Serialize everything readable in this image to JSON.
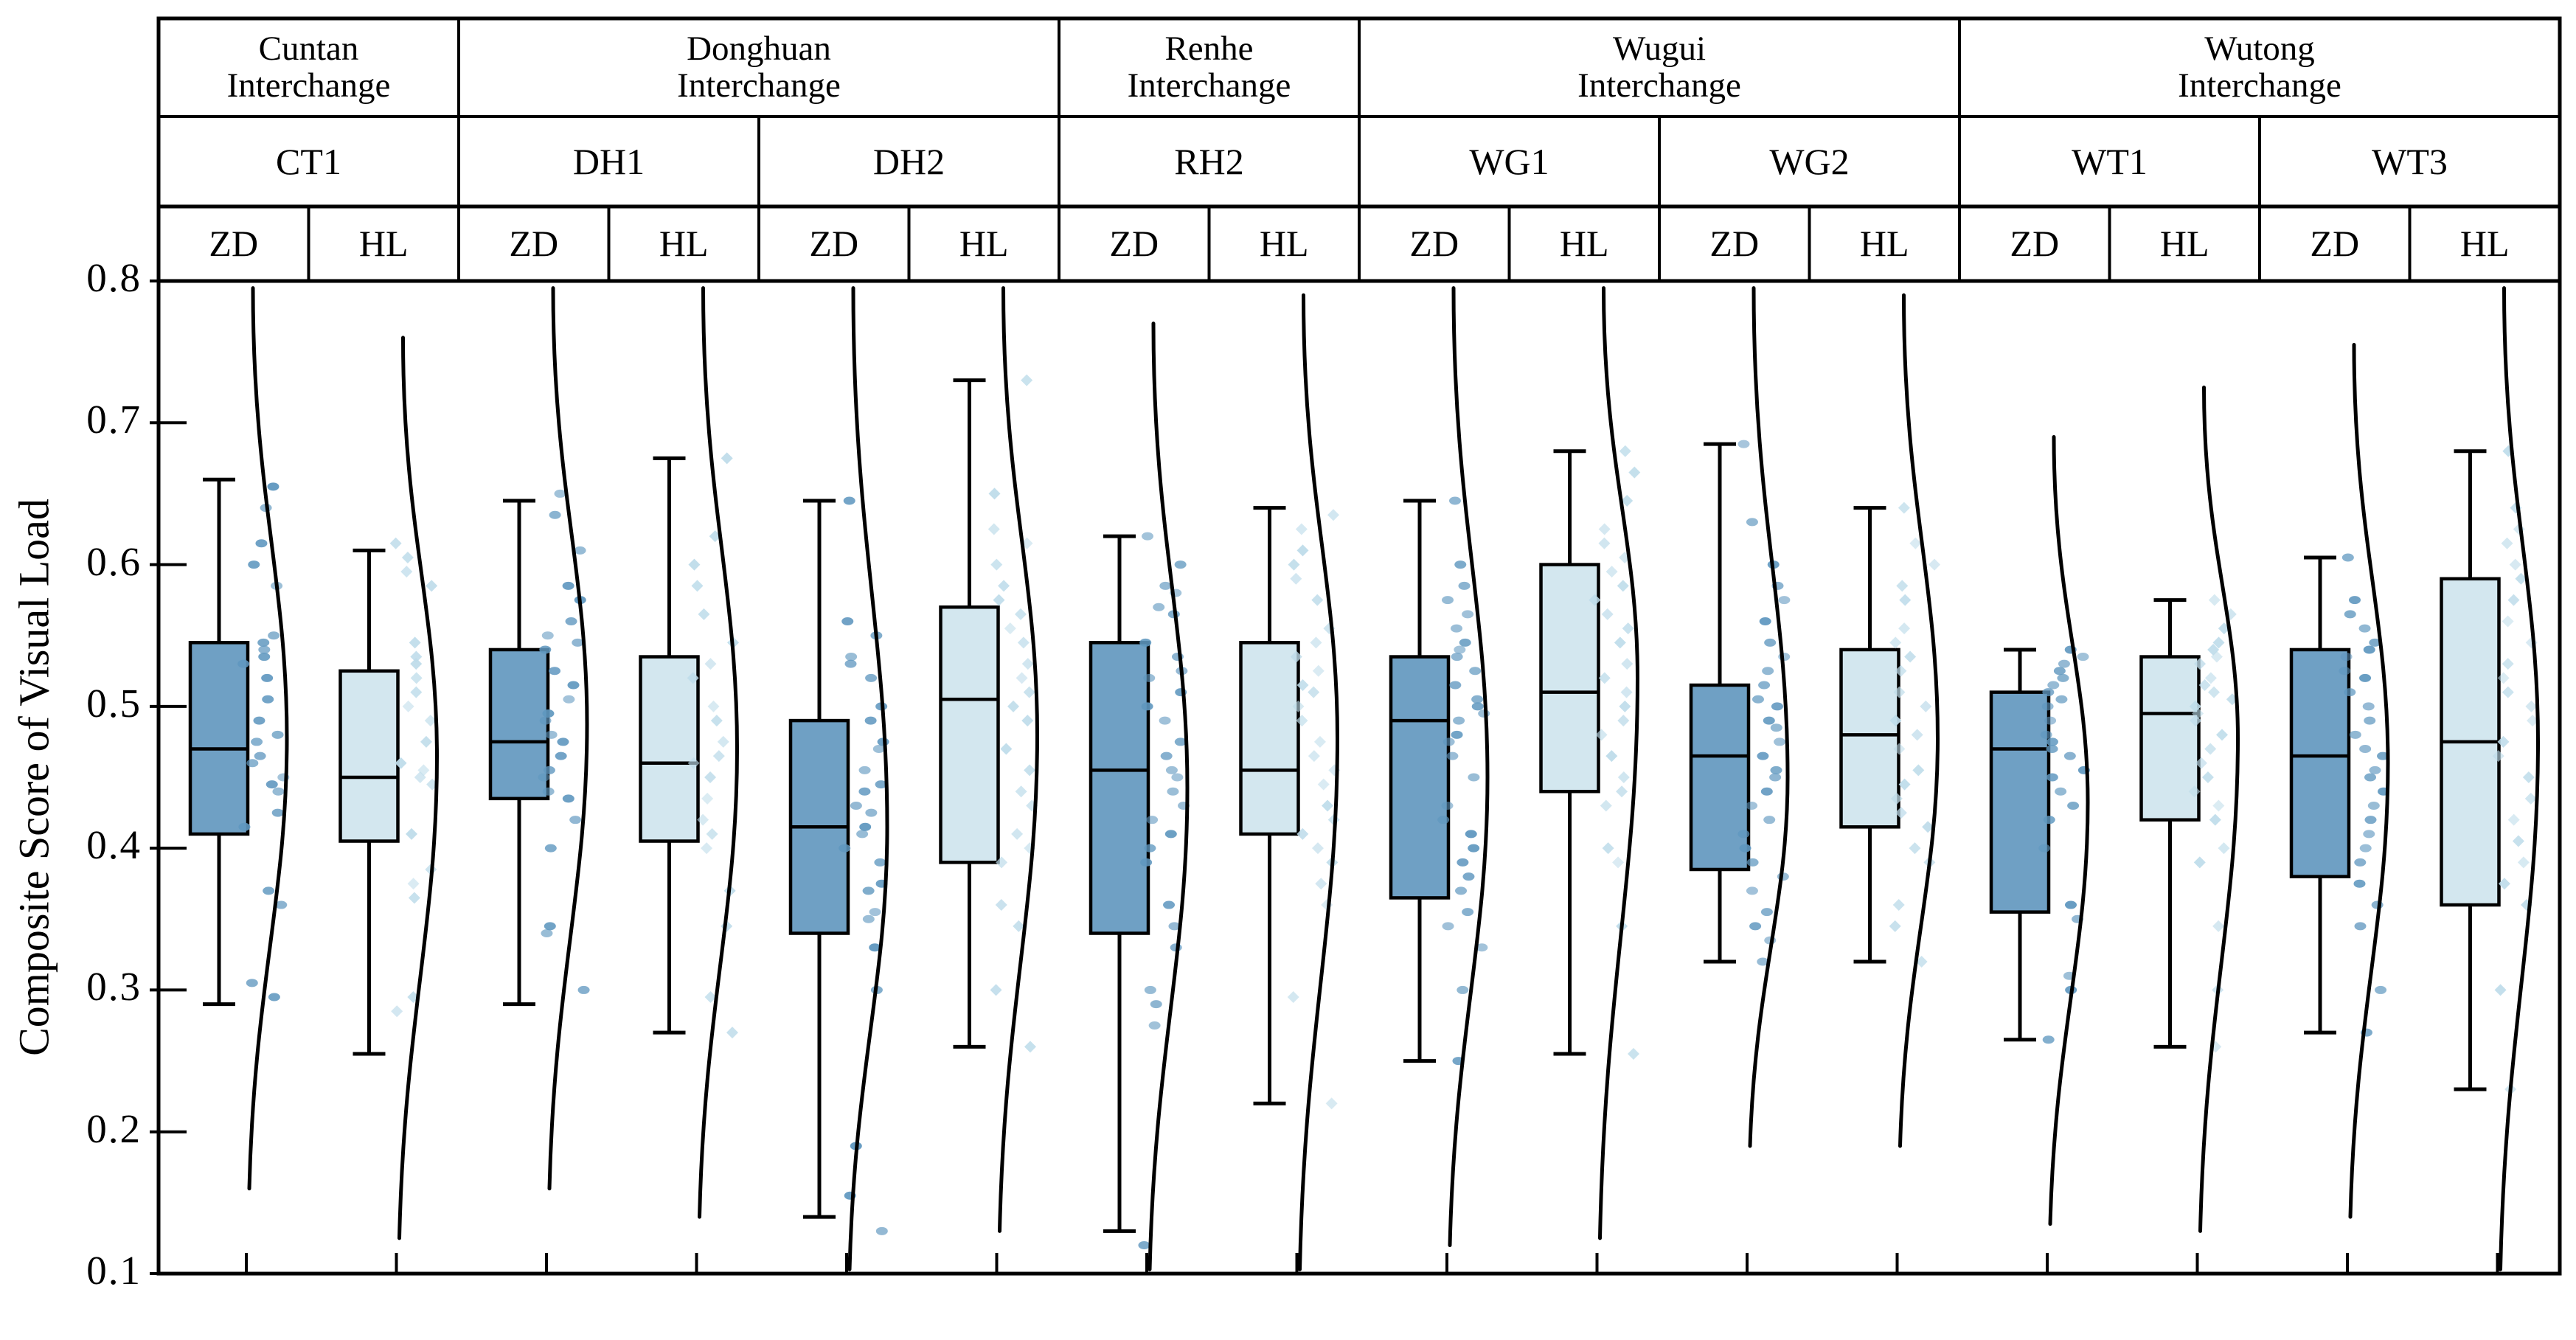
{
  "page": {
    "background": "#ffffff"
  },
  "y_axis": {
    "label": "Composite Score of Visual Load",
    "tick_labels": [
      "0.8",
      "0.7",
      "0.6",
      "0.5",
      "0.4",
      "0.3",
      "0.2",
      "0.1"
    ]
  },
  "header": {
    "interchange_row": [
      {
        "line1": "Cuntan",
        "line2": "Interchange",
        "span": 2
      },
      {
        "line1": "Donghuan",
        "line2": "Interchange",
        "span": 4
      },
      {
        "line1": "Renhe",
        "line2": "Interchange",
        "span": 2
      },
      {
        "line1": "Wugui",
        "line2": "Interchange",
        "span": 4
      },
      {
        "line1": "Wutong",
        "line2": "Interchange",
        "span": 4
      }
    ],
    "site_row": [
      {
        "label": "CT1",
        "span": 2
      },
      {
        "label": "DH1",
        "span": 2
      },
      {
        "label": "DH2",
        "span": 2
      },
      {
        "label": "RH2",
        "span": 2
      },
      {
        "label": "WG1",
        "span": 2
      },
      {
        "label": "WG2",
        "span": 2
      },
      {
        "label": "WT1",
        "span": 2
      },
      {
        "label": "WT3",
        "span": 2
      }
    ],
    "condition_row": [
      "ZD",
      "HL",
      "ZD",
      "HL",
      "ZD",
      "HL",
      "ZD",
      "HL",
      "ZD",
      "HL",
      "ZD",
      "HL",
      "ZD",
      "HL",
      "ZD",
      "HL"
    ]
  },
  "colors": {
    "zd_box": "#6FA0C4",
    "hl_box": "#D3E7EF",
    "zd_point": "#5F97BF",
    "hl_point": "#BEDCEA",
    "line": "#000000",
    "background": "#ffffff"
  },
  "chart_data": {
    "type": "boxplot",
    "variant": "raincloud: box + jittered points + half-violin density outline per cell",
    "title": "",
    "xlabel": "",
    "ylabel": "Composite Score of Visual Load",
    "ylim": [
      0.1,
      0.8
    ],
    "y_ticks": [
      0.8,
      0.7,
      0.6,
      0.5,
      0.4,
      0.3,
      0.2,
      0.1
    ],
    "legend": "none",
    "grid": false,
    "groups": [
      {
        "interchange": "Cuntan Interchange",
        "site": "CT1",
        "condition": "ZD",
        "whisker_low": 0.29,
        "q1": 0.41,
        "median": 0.47,
        "q3": 0.545,
        "whisker_high": 0.66,
        "points": [
          0.655,
          0.64,
          0.615,
          0.6,
          0.585,
          0.55,
          0.545,
          0.54,
          0.535,
          0.53,
          0.52,
          0.505,
          0.49,
          0.48,
          0.475,
          0.465,
          0.46,
          0.45,
          0.445,
          0.44,
          0.425,
          0.415,
          0.37,
          0.36,
          0.305,
          0.295
        ]
      },
      {
        "interchange": "Cuntan Interchange",
        "site": "CT1",
        "condition": "HL",
        "whisker_low": 0.255,
        "q1": 0.405,
        "median": 0.45,
        "q3": 0.525,
        "whisker_high": 0.61,
        "points": [
          0.615,
          0.605,
          0.595,
          0.585,
          0.545,
          0.535,
          0.53,
          0.52,
          0.51,
          0.5,
          0.49,
          0.475,
          0.46,
          0.455,
          0.45,
          0.445,
          0.41,
          0.385,
          0.375,
          0.365,
          0.295,
          0.285
        ]
      },
      {
        "interchange": "Donghuan Interchange",
        "site": "DH1",
        "condition": "ZD",
        "whisker_low": 0.29,
        "q1": 0.435,
        "median": 0.475,
        "q3": 0.54,
        "whisker_high": 0.645,
        "points": [
          0.65,
          0.635,
          0.61,
          0.585,
          0.575,
          0.56,
          0.55,
          0.545,
          0.54,
          0.525,
          0.515,
          0.505,
          0.495,
          0.49,
          0.48,
          0.475,
          0.465,
          0.455,
          0.45,
          0.44,
          0.435,
          0.42,
          0.4,
          0.345,
          0.34,
          0.3
        ]
      },
      {
        "interchange": "Donghuan Interchange",
        "site": "DH1",
        "condition": "HL",
        "whisker_low": 0.27,
        "q1": 0.405,
        "median": 0.46,
        "q3": 0.535,
        "whisker_high": 0.675,
        "points": [
          0.675,
          0.62,
          0.6,
          0.585,
          0.565,
          0.545,
          0.53,
          0.52,
          0.5,
          0.49,
          0.475,
          0.465,
          0.46,
          0.45,
          0.435,
          0.42,
          0.41,
          0.4,
          0.37,
          0.345,
          0.295,
          0.27
        ]
      },
      {
        "interchange": "Donghuan Interchange",
        "site": "DH2",
        "condition": "ZD",
        "whisker_low": 0.14,
        "q1": 0.34,
        "median": 0.415,
        "q3": 0.49,
        "whisker_high": 0.645,
        "points": [
          0.645,
          0.56,
          0.55,
          0.535,
          0.53,
          0.52,
          0.5,
          0.49,
          0.475,
          0.47,
          0.455,
          0.445,
          0.44,
          0.43,
          0.425,
          0.415,
          0.41,
          0.4,
          0.39,
          0.375,
          0.37,
          0.355,
          0.35,
          0.33,
          0.3,
          0.19,
          0.155,
          0.13
        ]
      },
      {
        "interchange": "Donghuan Interchange",
        "site": "DH2",
        "condition": "HL",
        "whisker_low": 0.26,
        "q1": 0.39,
        "median": 0.505,
        "q3": 0.57,
        "whisker_high": 0.73,
        "points": [
          0.73,
          0.65,
          0.625,
          0.615,
          0.6,
          0.585,
          0.575,
          0.565,
          0.555,
          0.545,
          0.53,
          0.52,
          0.51,
          0.5,
          0.49,
          0.47,
          0.455,
          0.44,
          0.43,
          0.41,
          0.4,
          0.39,
          0.36,
          0.345,
          0.3,
          0.26
        ]
      },
      {
        "interchange": "Renhe Interchange",
        "site": "RH2",
        "condition": "ZD",
        "whisker_low": 0.13,
        "q1": 0.34,
        "median": 0.455,
        "q3": 0.545,
        "whisker_high": 0.62,
        "points": [
          0.62,
          0.6,
          0.585,
          0.58,
          0.57,
          0.565,
          0.545,
          0.535,
          0.525,
          0.52,
          0.51,
          0.5,
          0.49,
          0.475,
          0.465,
          0.455,
          0.45,
          0.44,
          0.43,
          0.42,
          0.41,
          0.4,
          0.39,
          0.36,
          0.345,
          0.33,
          0.3,
          0.29,
          0.275,
          0.12
        ]
      },
      {
        "interchange": "Renhe Interchange",
        "site": "RH2",
        "condition": "HL",
        "whisker_low": 0.22,
        "q1": 0.41,
        "median": 0.455,
        "q3": 0.545,
        "whisker_high": 0.64,
        "points": [
          0.635,
          0.625,
          0.61,
          0.6,
          0.59,
          0.575,
          0.555,
          0.545,
          0.535,
          0.525,
          0.515,
          0.51,
          0.5,
          0.49,
          0.475,
          0.465,
          0.455,
          0.445,
          0.43,
          0.42,
          0.41,
          0.4,
          0.39,
          0.375,
          0.36,
          0.295,
          0.22
        ]
      },
      {
        "interchange": "Wugui Interchange",
        "site": "WG1",
        "condition": "ZD",
        "whisker_low": 0.25,
        "q1": 0.365,
        "median": 0.49,
        "q3": 0.535,
        "whisker_high": 0.645,
        "points": [
          0.645,
          0.6,
          0.585,
          0.575,
          0.565,
          0.555,
          0.545,
          0.54,
          0.535,
          0.525,
          0.515,
          0.505,
          0.5,
          0.495,
          0.49,
          0.48,
          0.475,
          0.465,
          0.45,
          0.43,
          0.42,
          0.41,
          0.4,
          0.39,
          0.38,
          0.37,
          0.355,
          0.345,
          0.33,
          0.3,
          0.25
        ]
      },
      {
        "interchange": "Wugui Interchange",
        "site": "WG1",
        "condition": "HL",
        "whisker_low": 0.255,
        "q1": 0.44,
        "median": 0.51,
        "q3": 0.6,
        "whisker_high": 0.68,
        "points": [
          0.68,
          0.665,
          0.645,
          0.625,
          0.615,
          0.605,
          0.595,
          0.585,
          0.575,
          0.565,
          0.555,
          0.545,
          0.53,
          0.52,
          0.51,
          0.5,
          0.49,
          0.48,
          0.465,
          0.45,
          0.44,
          0.43,
          0.4,
          0.39,
          0.345,
          0.255
        ]
      },
      {
        "interchange": "Wugui Interchange",
        "site": "WG2",
        "condition": "ZD",
        "whisker_low": 0.32,
        "q1": 0.385,
        "median": 0.465,
        "q3": 0.515,
        "whisker_high": 0.685,
        "points": [
          0.685,
          0.63,
          0.6,
          0.585,
          0.575,
          0.56,
          0.545,
          0.535,
          0.525,
          0.515,
          0.505,
          0.5,
          0.49,
          0.485,
          0.475,
          0.465,
          0.455,
          0.45,
          0.44,
          0.43,
          0.42,
          0.41,
          0.4,
          0.39,
          0.38,
          0.37,
          0.355,
          0.345,
          0.335,
          0.32
        ]
      },
      {
        "interchange": "Wugui Interchange",
        "site": "WG2",
        "condition": "HL",
        "whisker_low": 0.32,
        "q1": 0.415,
        "median": 0.48,
        "q3": 0.54,
        "whisker_high": 0.64,
        "points": [
          0.64,
          0.615,
          0.6,
          0.585,
          0.575,
          0.555,
          0.545,
          0.535,
          0.525,
          0.51,
          0.5,
          0.49,
          0.48,
          0.47,
          0.455,
          0.445,
          0.435,
          0.425,
          0.415,
          0.4,
          0.39,
          0.36,
          0.345,
          0.32
        ]
      },
      {
        "interchange": "Wutong Interchange",
        "site": "WT1",
        "condition": "ZD",
        "whisker_low": 0.265,
        "q1": 0.355,
        "median": 0.47,
        "q3": 0.51,
        "whisker_high": 0.54,
        "points": [
          0.54,
          0.535,
          0.53,
          0.525,
          0.52,
          0.515,
          0.51,
          0.505,
          0.5,
          0.49,
          0.48,
          0.475,
          0.47,
          0.465,
          0.455,
          0.45,
          0.44,
          0.43,
          0.42,
          0.4,
          0.36,
          0.35,
          0.31,
          0.3,
          0.265
        ]
      },
      {
        "interchange": "Wutong Interchange",
        "site": "WT1",
        "condition": "HL",
        "whisker_low": 0.26,
        "q1": 0.42,
        "median": 0.495,
        "q3": 0.535,
        "whisker_high": 0.575,
        "points": [
          0.575,
          0.565,
          0.555,
          0.545,
          0.54,
          0.535,
          0.53,
          0.52,
          0.515,
          0.51,
          0.505,
          0.5,
          0.495,
          0.49,
          0.48,
          0.47,
          0.46,
          0.45,
          0.44,
          0.43,
          0.42,
          0.4,
          0.39,
          0.345,
          0.3,
          0.26
        ]
      },
      {
        "interchange": "Wutong Interchange",
        "site": "WT3",
        "condition": "ZD",
        "whisker_low": 0.27,
        "q1": 0.38,
        "median": 0.465,
        "q3": 0.54,
        "whisker_high": 0.605,
        "points": [
          0.605,
          0.575,
          0.565,
          0.555,
          0.545,
          0.54,
          0.535,
          0.525,
          0.52,
          0.51,
          0.5,
          0.49,
          0.48,
          0.47,
          0.465,
          0.455,
          0.45,
          0.44,
          0.43,
          0.42,
          0.41,
          0.4,
          0.39,
          0.375,
          0.36,
          0.345,
          0.3,
          0.27
        ]
      },
      {
        "interchange": "Wutong Interchange",
        "site": "WT3",
        "condition": "HL",
        "whisker_low": 0.23,
        "q1": 0.36,
        "median": 0.475,
        "q3": 0.59,
        "whisker_high": 0.68,
        "points": [
          0.68,
          0.64,
          0.625,
          0.615,
          0.6,
          0.59,
          0.575,
          0.56,
          0.545,
          0.53,
          0.52,
          0.51,
          0.5,
          0.49,
          0.475,
          0.465,
          0.45,
          0.435,
          0.42,
          0.405,
          0.39,
          0.375,
          0.36,
          0.3,
          0.23
        ]
      }
    ]
  }
}
